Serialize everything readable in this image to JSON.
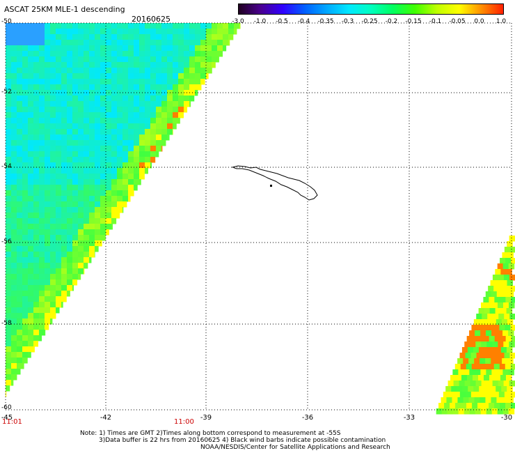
{
  "header": {
    "title": "ASCAT 25KM MLE-1 descending",
    "date": "20160625"
  },
  "colorbar": {
    "labels": [
      "-3.0",
      "-1.0",
      "-0.5",
      "-0.4",
      "-0.35",
      "-0.3",
      "-0.25",
      "-0.2",
      "-0.15",
      "-0.1",
      "-0.05",
      "0.0",
      "1.0"
    ],
    "colors": [
      "#200020",
      "#4a0090",
      "#3000ff",
      "#0060ff",
      "#00a8ff",
      "#00e8ff",
      "#00ffc0",
      "#00ff60",
      "#40ff00",
      "#c0ff00",
      "#ffff00",
      "#ff9000",
      "#ff2000"
    ]
  },
  "map": {
    "latitudes": [
      "-50",
      "-52",
      "-54",
      "-56",
      "-58",
      "-60"
    ],
    "longitudes": [
      "-45",
      "-42",
      "-39",
      "-36",
      "-33",
      "-30"
    ],
    "time_labels": {
      "left": "11:01",
      "center": "11:00"
    },
    "colors": {
      "water_blue": "#00e8ff",
      "green": "#40ff40",
      "yellow": "#ffff00",
      "orange": "#ff8000",
      "time_red": "#cc0000"
    }
  },
  "notes": {
    "line1": "Note: 1) Times are GMT 2)Times along bottom correspond to measurement at -55S",
    "line2": "3)Data buffer is 22 hrs from 20160625 4) Black wind barbs indicate possible contamination",
    "line3": "NOAA/NESDIS/Center for Satellite Applications and Research"
  }
}
